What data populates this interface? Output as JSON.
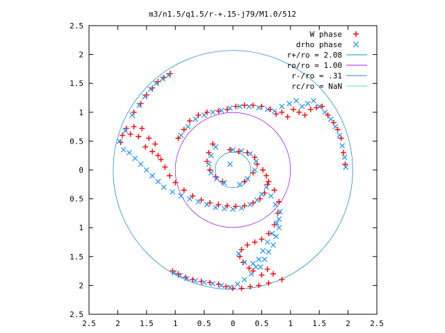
{
  "chart_data": {
    "type": "scatter",
    "title": "m3/n1.5/q1.5/r-+.15-j79/M1.0/512",
    "xlim": [
      -2.5,
      2.5
    ],
    "ylim": [
      -2.5,
      2.5
    ],
    "x_ticks": [
      {
        "value": -2.5,
        "label": "2.5"
      },
      {
        "value": -2,
        "label": "2"
      },
      {
        "value": -1.5,
        "label": "1.5"
      },
      {
        "value": -1,
        "label": "1"
      },
      {
        "value": -0.5,
        "label": "0.5"
      },
      {
        "value": 0,
        "label": "0"
      },
      {
        "value": 0.5,
        "label": "0.5"
      },
      {
        "value": 1,
        "label": "1"
      },
      {
        "value": 1.5,
        "label": "1.5"
      },
      {
        "value": 2,
        "label": "2"
      },
      {
        "value": 2.5,
        "label": "2.5"
      }
    ],
    "y_ticks": [
      {
        "value": 2.5,
        "label": "2.5"
      },
      {
        "value": 2,
        "label": "2"
      },
      {
        "value": 1.5,
        "label": "1.5"
      },
      {
        "value": 1,
        "label": "1"
      },
      {
        "value": 0.5,
        "label": "0.5"
      },
      {
        "value": 0,
        "label": "0"
      },
      {
        "value": -0.5,
        "label": "0.5"
      },
      {
        "value": -1,
        "label": "1"
      },
      {
        "value": -1.5,
        "label": "1.5"
      },
      {
        "value": -2,
        "label": "2"
      },
      {
        "value": -2.5,
        "label": "2.5"
      }
    ],
    "legend_position": "top-right",
    "grid": false,
    "series": [
      {
        "name": "W phase",
        "marker": "+",
        "color": "#ff0000",
        "points": [
          [
            -1.09,
            1.67
          ],
          [
            -1.2,
            1.6
          ],
          [
            -1.3,
            1.53
          ],
          [
            -1.4,
            1.42
          ],
          [
            -1.5,
            1.3
          ],
          [
            -1.6,
            1.15
          ],
          [
            -1.72,
            1.0
          ],
          [
            -1.85,
            0.72
          ],
          [
            -1.95,
            0.48
          ],
          [
            -1.92,
            0.6
          ],
          [
            -1.78,
            0.62
          ],
          [
            -1.72,
            0.75
          ],
          [
            -1.64,
            0.58
          ],
          [
            -1.58,
            0.72
          ],
          [
            -1.52,
            0.4
          ],
          [
            -1.46,
            0.55
          ],
          [
            -1.4,
            0.32
          ],
          [
            -1.35,
            0.45
          ],
          [
            -1.3,
            0.25
          ],
          [
            -1.25,
            0.18
          ],
          [
            -1.18,
            0.05
          ],
          [
            -1.1,
            -0.1
          ],
          [
            -1.0,
            -0.22
          ],
          [
            -0.85,
            -0.35
          ],
          [
            -0.7,
            -0.45
          ],
          [
            -0.55,
            -0.52
          ],
          [
            -0.4,
            -0.57
          ],
          [
            -0.25,
            -0.6
          ],
          [
            -0.1,
            -0.62
          ],
          [
            0.05,
            -0.63
          ],
          [
            0.2,
            -0.62
          ],
          [
            0.35,
            -0.57
          ],
          [
            0.47,
            -0.5
          ],
          [
            0.55,
            -0.4
          ],
          [
            0.6,
            -0.25
          ],
          [
            0.58,
            -0.1
          ],
          [
            0.52,
            0.0
          ],
          [
            0.62,
            -0.2
          ],
          [
            0.72,
            -0.35
          ],
          [
            0.8,
            -0.55
          ],
          [
            0.78,
            -0.75
          ],
          [
            0.72,
            -0.95
          ],
          [
            0.62,
            -1.1
          ],
          [
            0.5,
            -1.2
          ],
          [
            0.38,
            -1.25
          ],
          [
            0.25,
            -1.3
          ],
          [
            0.15,
            -1.38
          ],
          [
            0.12,
            -1.5
          ],
          [
            0.18,
            -1.6
          ],
          [
            0.28,
            -1.7
          ],
          [
            0.35,
            -1.75
          ],
          [
            0.5,
            -1.82
          ],
          [
            0.6,
            -1.72
          ],
          [
            0.7,
            -1.8
          ],
          [
            0.85,
            -1.9
          ],
          [
            0.62,
            -1.96
          ],
          [
            0.45,
            -2.0
          ],
          [
            0.3,
            -2.02
          ],
          [
            0.15,
            -2.05
          ],
          [
            0.0,
            -2.05
          ],
          [
            -0.12,
            -2.02
          ],
          [
            -0.25,
            -1.98
          ],
          [
            -0.4,
            -1.95
          ],
          [
            -0.55,
            -1.93
          ],
          [
            -0.7,
            -1.9
          ],
          [
            -0.82,
            -1.86
          ],
          [
            -0.95,
            -1.8
          ],
          [
            -1.05,
            -1.75
          ],
          [
            -0.95,
            0.55
          ],
          [
            -0.85,
            0.7
          ],
          [
            -0.75,
            0.85
          ],
          [
            -0.6,
            0.95
          ],
          [
            -0.45,
            1.0
          ],
          [
            -0.25,
            1.02
          ],
          [
            -0.1,
            1.05
          ],
          [
            0.05,
            1.1
          ],
          [
            0.2,
            1.12
          ],
          [
            0.35,
            1.12
          ],
          [
            0.5,
            1.1
          ],
          [
            0.65,
            1.05
          ],
          [
            0.75,
            0.97
          ],
          [
            0.85,
            1.0
          ],
          [
            0.95,
            0.92
          ],
          [
            1.05,
            1.05
          ],
          [
            1.15,
            1.0
          ],
          [
            1.25,
            0.95
          ],
          [
            1.35,
            1.05
          ],
          [
            1.45,
            1.08
          ],
          [
            1.55,
            1.1
          ],
          [
            1.65,
            0.95
          ],
          [
            1.75,
            0.82
          ],
          [
            1.82,
            0.7
          ],
          [
            1.88,
            0.55
          ],
          [
            1.92,
            0.3
          ],
          [
            1.95,
            0.1
          ],
          [
            -0.35,
            0.45
          ],
          [
            -0.42,
            0.3
          ],
          [
            -0.45,
            0.15
          ],
          [
            -0.4,
            0.0
          ],
          [
            -0.3,
            -0.12
          ],
          [
            -0.18,
            -0.2
          ],
          [
            -0.05,
            0.35
          ],
          [
            0.1,
            0.32
          ],
          [
            0.25,
            0.3
          ],
          [
            0.38,
            0.22
          ],
          [
            0.42,
            0.1
          ],
          [
            0.35,
            -0.05
          ],
          [
            0.2,
            -0.2
          ]
        ]
      },
      {
        "name": "drho phase",
        "marker": "x",
        "color": "#1e90ff",
        "points": [
          [
            -1.12,
            1.64
          ],
          [
            -1.22,
            1.58
          ],
          [
            -1.33,
            1.5
          ],
          [
            -1.43,
            1.4
          ],
          [
            -1.53,
            1.27
          ],
          [
            -1.63,
            1.12
          ],
          [
            -1.75,
            0.95
          ],
          [
            -1.87,
            0.68
          ],
          [
            -1.97,
            0.5
          ],
          [
            -1.9,
            0.35
          ],
          [
            -1.8,
            0.3
          ],
          [
            -1.7,
            0.2
          ],
          [
            -1.6,
            0.1
          ],
          [
            -1.5,
            0.0
          ],
          [
            -1.4,
            -0.1
          ],
          [
            -1.3,
            -0.2
          ],
          [
            -1.2,
            -0.3
          ],
          [
            -1.05,
            -0.38
          ],
          [
            -0.9,
            -0.45
          ],
          [
            -0.75,
            -0.5
          ],
          [
            -0.6,
            -0.55
          ],
          [
            -0.45,
            -0.6
          ],
          [
            -0.3,
            -0.65
          ],
          [
            -0.15,
            -0.67
          ],
          [
            0.0,
            -0.68
          ],
          [
            0.15,
            -0.66
          ],
          [
            0.3,
            -0.6
          ],
          [
            0.42,
            -0.52
          ],
          [
            0.5,
            -0.42
          ],
          [
            0.58,
            -0.3
          ],
          [
            0.66,
            -0.45
          ],
          [
            0.74,
            -0.6
          ],
          [
            0.82,
            -0.72
          ],
          [
            0.76,
            -0.92
          ],
          [
            0.68,
            -1.1
          ],
          [
            0.6,
            -1.25
          ],
          [
            0.52,
            -1.4
          ],
          [
            0.45,
            -1.55
          ],
          [
            0.4,
            -1.68
          ],
          [
            0.32,
            -1.8
          ],
          [
            0.2,
            -1.9
          ],
          [
            0.08,
            -1.98
          ],
          [
            -0.05,
            -2.03
          ],
          [
            -0.2,
            -2.0
          ],
          [
            -0.35,
            -1.97
          ],
          [
            -0.5,
            -1.95
          ],
          [
            -0.65,
            -1.92
          ],
          [
            -0.8,
            -1.88
          ],
          [
            -0.92,
            -1.83
          ],
          [
            -1.02,
            -1.78
          ],
          [
            -0.9,
            0.6
          ],
          [
            -0.78,
            0.75
          ],
          [
            -0.65,
            0.88
          ],
          [
            -0.5,
            0.95
          ],
          [
            -0.35,
            1.0
          ],
          [
            -0.2,
            1.03
          ],
          [
            -0.05,
            1.07
          ],
          [
            0.12,
            1.1
          ],
          [
            0.28,
            1.1
          ],
          [
            0.45,
            1.08
          ],
          [
            0.6,
            1.05
          ],
          [
            0.72,
            1.02
          ],
          [
            0.85,
            1.1
          ],
          [
            0.98,
            1.15
          ],
          [
            1.1,
            1.2
          ],
          [
            1.2,
            1.1
          ],
          [
            1.3,
            1.15
          ],
          [
            1.4,
            1.2
          ],
          [
            1.5,
            1.1
          ],
          [
            1.6,
            1.0
          ],
          [
            1.7,
            0.88
          ],
          [
            1.78,
            0.75
          ],
          [
            1.85,
            0.6
          ],
          [
            1.9,
            0.42
          ],
          [
            1.94,
            0.22
          ],
          [
            1.96,
            0.05
          ],
          [
            -0.3,
            0.4
          ],
          [
            -0.38,
            0.25
          ],
          [
            -0.42,
            0.1
          ],
          [
            -0.38,
            -0.05
          ],
          [
            -0.28,
            -0.15
          ],
          [
            -0.15,
            -0.22
          ],
          [
            0.0,
            0.35
          ],
          [
            0.15,
            0.33
          ],
          [
            0.3,
            0.28
          ],
          [
            0.4,
            0.15
          ],
          [
            0.38,
            0.0
          ],
          [
            0.25,
            -0.15
          ],
          [
            0.12,
            -0.25
          ],
          [
            -0.05,
            0.1
          ],
          [
            0.1,
            -1.45
          ],
          [
            0.2,
            -1.6
          ],
          [
            0.35,
            -1.62
          ],
          [
            0.48,
            -1.68
          ],
          [
            0.55,
            -1.55
          ],
          [
            0.62,
            -1.42
          ],
          [
            0.7,
            -1.3
          ],
          [
            0.75,
            -1.15
          ],
          [
            0.8,
            -1.0
          ],
          [
            0.8,
            -0.85
          ]
        ]
      },
      {
        "name": "r+/ro = 2.08",
        "type": "circle",
        "radius": 2.08,
        "color": "#1e8fcf"
      },
      {
        "name": "ro/ro = 1.00",
        "type": "circle",
        "radius": 1.0,
        "color": "#a020f0"
      },
      {
        "name": "r-/ro = .31",
        "type": "circle",
        "radius": 0.31,
        "color": "#1e8fcf"
      },
      {
        "name": "rc/ro = NaN",
        "type": "circle",
        "radius": null,
        "color": "#40e0d0"
      }
    ]
  }
}
